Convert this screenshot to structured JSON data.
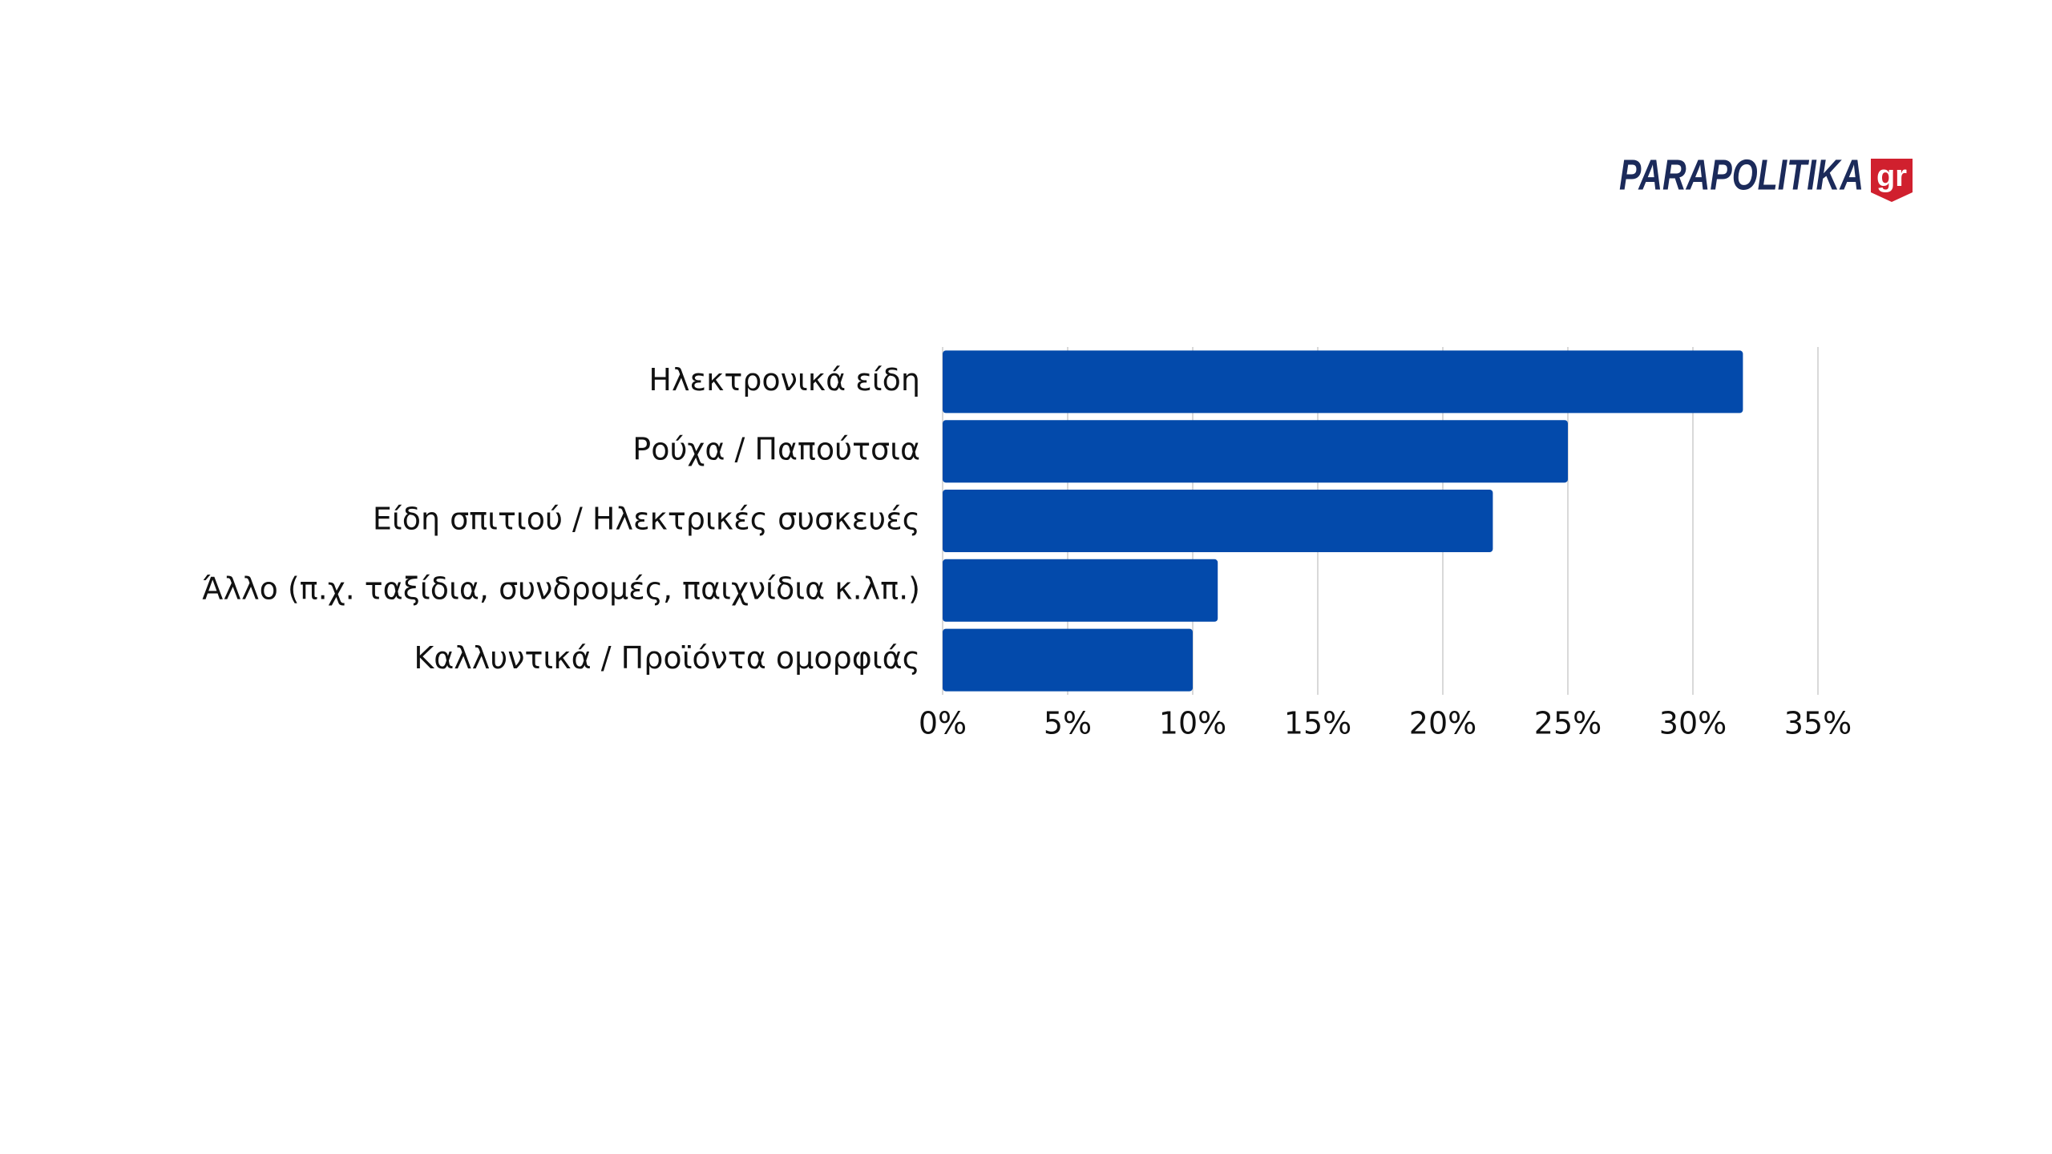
{
  "brand": {
    "name": "PARAPOLITIKA",
    "suffix": "gr"
  },
  "chart_data": {
    "type": "bar",
    "orientation": "horizontal",
    "categories": [
      "Ηλεκτρονικά είδη",
      "Ρούχα / Παπούτσια",
      "Είδη σπιτιού / Ηλεκτρικές συσκευές",
      "Άλλο (π.χ. ταξίδια, συνδρομές, παιχνίδια κ.λπ.)",
      "Καλλυντικά / Προϊόντα ομορφιάς"
    ],
    "values": [
      32,
      25,
      22,
      11,
      10
    ],
    "color": "#034aab",
    "xlim": [
      0,
      35
    ],
    "xticks": [
      {
        "value": 0,
        "label": "0%"
      },
      {
        "value": 5,
        "label": "5%"
      },
      {
        "value": 10,
        "label": "10%"
      },
      {
        "value": 15,
        "label": "15%"
      },
      {
        "value": 20,
        "label": "20%"
      },
      {
        "value": 25,
        "label": "25%"
      },
      {
        "value": 30,
        "label": "30%"
      },
      {
        "value": 35,
        "label": "35%"
      }
    ],
    "grid": true
  }
}
